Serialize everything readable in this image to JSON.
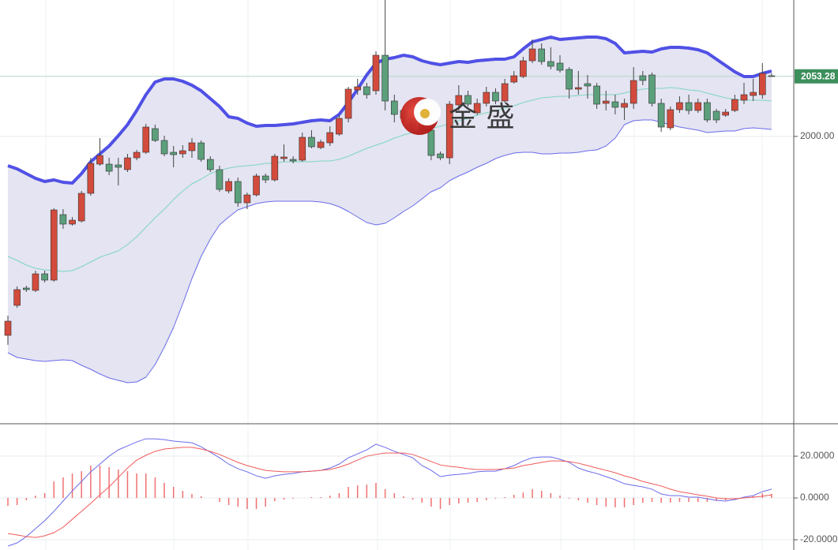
{
  "chart_data": [
    {
      "type": "candlestick",
      "up_color": "#d24b3c",
      "down_color": "#5b9f7b",
      "band_fill": "#e4e4f2",
      "grid": true,
      "ylim": [
        1745.1,
        2121
      ],
      "yticks": [
        {
          "value": 2000,
          "label": "2000.00"
        }
      ],
      "last_price": {
        "value": 2053.28,
        "label": "2053.28",
        "color": "#3d8f5c"
      },
      "ohlc": [
        [
          1823.5,
          1841,
          1815.1,
          1836.1
        ],
        [
          1850.1,
          1866.9,
          1848,
          1864.1
        ],
        [
          1865.5,
          1867.6,
          1862,
          1864.1
        ],
        [
          1863.4,
          1880.9,
          1862,
          1878.1
        ],
        [
          1878.1,
          1880.9,
          1870.4,
          1872.5
        ],
        [
          1872.5,
          1936.2,
          1871.1,
          1934.8
        ],
        [
          1930.6,
          1935.5,
          1918,
          1922.2
        ],
        [
          1922.2,
          1928.5,
          1920.8,
          1925.7
        ],
        [
          1925,
          1951.6,
          1923.6,
          1949.5
        ],
        [
          1949.5,
          1981,
          1947.4,
          1976.1
        ],
        [
          1975.4,
          1998.5,
          1974,
          1983.1
        ],
        [
          1975.4,
          1981,
          1965.6,
          1969.1
        ],
        [
          1974.7,
          1981,
          1956.5,
          1972.6
        ],
        [
          1970.5,
          1984.5,
          1968.4,
          1981
        ],
        [
          1981,
          1988,
          1978.9,
          1985.9
        ],
        [
          1985.9,
          2011.1,
          1984.5,
          2008.3
        ],
        [
          2006.9,
          2010.4,
          1995,
          1996.4
        ],
        [
          1996.4,
          2000.6,
          1982.4,
          1984.5
        ],
        [
          1985.9,
          1991.5,
          1972.6,
          1983.8
        ],
        [
          1984.5,
          1992.2,
          1981,
          1987.3
        ],
        [
          1987.3,
          1998.5,
          1981,
          1994.3
        ],
        [
          1994.3,
          1996.4,
          1977.5,
          1979.6
        ],
        [
          1979.6,
          1982.4,
          1968.4,
          1970.5
        ],
        [
          1970.5,
          1974,
          1950.9,
          1953
        ],
        [
          1951.6,
          1962.8,
          1949.5,
          1960
        ],
        [
          1960,
          1963.5,
          1937.6,
          1941.1
        ],
        [
          1941.1,
          1950.2,
          1935.5,
          1948.1
        ],
        [
          1948.1,
          1967,
          1946.7,
          1964.9
        ],
        [
          1964.9,
          1967,
          1958.6,
          1961.4
        ],
        [
          1961.4,
          1984.5,
          1960,
          1982.4
        ],
        [
          1980.3,
          1992.9,
          1977.5,
          1981.7
        ],
        [
          1979.6,
          1982.4,
          1976.1,
          1978.2
        ],
        [
          1978.9,
          2003.4,
          1977.5,
          1999.2
        ],
        [
          1999.2,
          2005.5,
          1989.4,
          1990.8
        ],
        [
          1990.1,
          1997.1,
          1988.7,
          1995
        ],
        [
          1994.3,
          2009,
          1991.5,
          2003.4
        ],
        [
          2002,
          2018.8,
          2000.6,
          2016
        ],
        [
          2016,
          2044,
          2012.5,
          2041.9
        ],
        [
          2041.2,
          2051,
          2037,
          2044
        ],
        [
          2044,
          2047.5,
          2033.5,
          2037
        ],
        [
          2040.5,
          2075.5,
          2037,
          2072
        ],
        [
          2072,
          2121,
          2023,
          2031.4
        ],
        [
          2031.4,
          2037,
          2012.5,
          2019.5
        ],
        [
          2023,
          2026.5,
          2010.4,
          2016
        ],
        [
          2016,
          2023,
          2005.5,
          2009
        ],
        [
          2012.5,
          2017.4,
          2002,
          2005.5
        ],
        [
          2005.5,
          2009,
          1978.9,
          1983.1
        ],
        [
          1984.5,
          1986.6,
          1978.9,
          1981
        ],
        [
          1981,
          2031.4,
          1975.4,
          2028.6
        ],
        [
          2027.9,
          2045.4,
          2023,
          2036.3
        ],
        [
          2036.3,
          2040.5,
          2026.5,
          2028.6
        ],
        [
          2020.9,
          2033.5,
          2018.8,
          2029.3
        ],
        [
          2029.3,
          2044,
          2026.5,
          2039.1
        ],
        [
          2039.1,
          2042.6,
          2028.6,
          2031.4
        ],
        [
          2031.4,
          2051,
          2030,
          2046.8
        ],
        [
          2048.2,
          2058,
          2046.8,
          2053.8
        ],
        [
          2053.1,
          2070.6,
          2051.7,
          2067.1
        ],
        [
          2067.1,
          2086,
          2065,
          2077.6
        ],
        [
          2077.6,
          2082.5,
          2063.6,
          2066.4
        ],
        [
          2066.4,
          2079,
          2059.4,
          2062.2
        ],
        [
          2065,
          2072,
          2056.6,
          2058.7
        ],
        [
          2059.4,
          2061.5,
          2033.5,
          2041.9
        ],
        [
          2041.9,
          2058,
          2037,
          2043.3
        ],
        [
          2046.8,
          2054.5,
          2033.5,
          2044.7
        ],
        [
          2044.7,
          2047.5,
          2024.4,
          2028.6
        ],
        [
          2029.3,
          2040.5,
          2023,
          2031.4
        ],
        [
          2030.7,
          2037,
          2019.5,
          2025.8
        ],
        [
          2025.8,
          2033.5,
          2014.6,
          2029.3
        ],
        [
          2029.3,
          2061.5,
          2024.4,
          2049.6
        ],
        [
          2053.8,
          2058,
          2045.4,
          2049.6
        ],
        [
          2054.5,
          2056.6,
          2026.5,
          2029.3
        ],
        [
          2029.3,
          2033.5,
          2004.1,
          2008.3
        ],
        [
          2007.6,
          2026.5,
          2005.5,
          2023.7
        ],
        [
          2023.7,
          2035.6,
          2020.9,
          2030
        ],
        [
          2030,
          2037,
          2019.5,
          2023
        ],
        [
          2023,
          2033.5,
          2020.9,
          2030
        ],
        [
          2030,
          2033.5,
          2012.5,
          2014.6
        ],
        [
          2022.3,
          2024.4,
          2011.8,
          2014.6
        ],
        [
          2018.8,
          2024.4,
          2017.4,
          2021.6
        ],
        [
          2023,
          2037,
          2021.6,
          2032.8
        ],
        [
          2032.1,
          2047.5,
          2028.6,
          2037
        ],
        [
          2036.3,
          2051,
          2031.4,
          2039.1
        ],
        [
          2037,
          2065,
          2033.5,
          2055.9
        ],
        [
          2053.8,
          2055.9,
          2053.1,
          2053.3
        ]
      ],
      "series": [
        {
          "color": "#5050e6",
          "width": 4,
          "values": [
            1974,
            1971.2,
            1967,
            1962.8,
            1960,
            1961.4,
            1959.3,
            1958.6,
            1967,
            1977.5,
            1984.5,
            1991.5,
            2000.6,
            2010.4,
            2023,
            2037,
            2048.2,
            2051,
            2051,
            2048.9,
            2045.4,
            2040.5,
            2033.5,
            2026.5,
            2017.4,
            2016,
            2011.8,
            2009,
            2009.7,
            2009.7,
            2010.4,
            2011.1,
            2012.5,
            2013.9,
            2014.6,
            2013.9,
            2019.5,
            2030,
            2041.9,
            2054.5,
            2065,
            2068.5,
            2069.9,
            2072,
            2070.6,
            2067.1,
            2065,
            2063.6,
            2065,
            2066.4,
            2065.7,
            2067.1,
            2067.8,
            2068.5,
            2068.5,
            2070.6,
            2077.6,
            2083.9,
            2086,
            2088.1,
            2086,
            2086.7,
            2087.4,
            2088.1,
            2088.1,
            2086.7,
            2082.5,
            2074.1,
            2074.8,
            2075.5,
            2074.8,
            2077.6,
            2079,
            2079,
            2078.3,
            2076.9,
            2074.1,
            2068.5,
            2062.9,
            2057.3,
            2053.1,
            2053.1,
            2055.9,
            2058
          ]
        },
        {
          "color": "#7ed6bf",
          "width": 1,
          "values": [
            1893.5,
            1890,
            1885.8,
            1883,
            1881.6,
            1880.9,
            1880.2,
            1880.9,
            1884.4,
            1888.6,
            1892.8,
            1895.6,
            1898.4,
            1904,
            1911,
            1919.4,
            1927.8,
            1935.5,
            1943.9,
            1951.6,
            1957.9,
            1962.1,
            1967,
            1969.8,
            1971.9,
            1973.3,
            1974,
            1974.7,
            1976.1,
            1976.1,
            1977.5,
            1977.5,
            1977.5,
            1977.5,
            1978.2,
            1978.2,
            1979.6,
            1982.4,
            1985.9,
            1989.4,
            1992.2,
            1995,
            1998.5,
            2001.3,
            2003.4,
            2005.5,
            2006.9,
            2009,
            2011.1,
            2013.9,
            2016,
            2018.8,
            2020.9,
            2023,
            2025.1,
            2027.2,
            2030,
            2032.1,
            2034.2,
            2034.9,
            2035.6,
            2035.6,
            2036.3,
            2037,
            2037,
            2037,
            2037,
            2038.4,
            2040.5,
            2041.9,
            2042.6,
            2042.6,
            2043.3,
            2042.6,
            2041.2,
            2040.5,
            2038.4,
            2036.3,
            2034.2,
            2032.8,
            2032.1,
            2032.1,
            2032.1,
            2031.4
          ]
        },
        {
          "color": "#6b6bea",
          "width": 1,
          "values": [
            1808.1,
            1803.9,
            1802.5,
            1801.1,
            1800.4,
            1801.1,
            1801.8,
            1801.1,
            1796.9,
            1793.4,
            1789.2,
            1785.7,
            1783.6,
            1781.5,
            1782.2,
            1786.4,
            1797.6,
            1813,
            1830.5,
            1851.5,
            1873.9,
            1893.5,
            1908.9,
            1921.5,
            1928.5,
            1934.8,
            1937.6,
            1940.4,
            1941.8,
            1942.5,
            1942.5,
            1942.5,
            1942.5,
            1942.5,
            1941.8,
            1940.4,
            1937.6,
            1933.4,
            1928.5,
            1923.6,
            1921.5,
            1922.9,
            1927.8,
            1933.4,
            1938.3,
            1944.6,
            1950.9,
            1954.4,
            1960.7,
            1964.9,
            1968.4,
            1972.6,
            1976.1,
            1980.3,
            1983.1,
            1985.2,
            1985.9,
            1985.9,
            1984.5,
            1984.5,
            1985.2,
            1985.2,
            1985.9,
            1987.3,
            1988,
            1991.5,
            1998.5,
            2010.4,
            2013.9,
            2014.6,
            2014.6,
            2012.5,
            2010.4,
            2008.3,
            2006.9,
            2005.5,
            2003.4,
            2004.1,
            2004.8,
            2004.8,
            2006.9,
            2007.6,
            2006.9,
            2006.2
          ]
        }
      ]
    },
    {
      "type": "macd",
      "grid": true,
      "ylim": [
        -24.9,
        35.5
      ],
      "yticks": [
        {
          "value": 20,
          "label": "20.0000"
        },
        {
          "value": 0,
          "label": "0.0000"
        },
        {
          "value": -20,
          "label": "-20.0000"
        }
      ],
      "series": [
        {
          "color": "#6b6bea",
          "values": [
            -23.0,
            -21.5,
            -18.5,
            -14.7,
            -10.9,
            -6.4,
            -1.5,
            3.4,
            7.9,
            12.5,
            16.2,
            20.0,
            23.0,
            24.9,
            26.8,
            28.3,
            28.3,
            27.9,
            27.2,
            26.8,
            26.4,
            24.5,
            21.9,
            19.2,
            16.2,
            14.0,
            12.5,
            10.6,
            9.4,
            10.6,
            11.3,
            11.7,
            12.5,
            12.8,
            13.2,
            14.3,
            16.2,
            19.2,
            21.1,
            23.0,
            25.7,
            24.2,
            22.3,
            20.8,
            19.2,
            15.5,
            13.2,
            10.2,
            10.9,
            11.3,
            11.7,
            12.5,
            12.8,
            12.8,
            14.0,
            15.5,
            17.7,
            19.2,
            19.6,
            19.6,
            18.5,
            17.0,
            14.3,
            12.8,
            11.7,
            10.2,
            8.7,
            6.8,
            6.0,
            5.3,
            4.2,
            1.9,
            1.1,
            1.1,
            0.4,
            0.4,
            -0.4,
            -1.1,
            -1.5,
            -0.8,
            0.4,
            1.1,
            3.0,
            4.2
          ]
        },
        {
          "color": "#f05a5a",
          "values": [
            -17.0,
            -17.7,
            -18.5,
            -18.9,
            -18.1,
            -16.6,
            -14.0,
            -10.2,
            -6.4,
            -2.6,
            1.5,
            5.3,
            9.8,
            14.3,
            18.1,
            20.4,
            22.3,
            23.4,
            23.8,
            24.2,
            24.2,
            23.4,
            22.3,
            20.8,
            18.9,
            17.0,
            15.5,
            14.3,
            13.2,
            12.8,
            12.5,
            12.5,
            12.5,
            12.8,
            13.2,
            13.6,
            14.7,
            16.2,
            18.1,
            20.0,
            20.8,
            21.5,
            21.5,
            21.5,
            20.8,
            19.2,
            17.4,
            15.8,
            15.1,
            14.7,
            14.0,
            13.6,
            13.6,
            13.6,
            14.0,
            14.3,
            15.5,
            16.2,
            17.0,
            17.7,
            17.7,
            17.4,
            16.6,
            15.5,
            14.3,
            13.2,
            12.1,
            10.6,
            9.4,
            7.9,
            6.8,
            5.7,
            4.2,
            3.0,
            2.3,
            1.5,
            0.8,
            0,
            -0.4,
            -0.4,
            0,
            0.4,
            0.8,
            1.5
          ]
        }
      ],
      "histogram": {
        "color": "#f07070",
        "values": [
          -3.8,
          -3.4,
          -1.1,
          1.1,
          2.3,
          7.9,
          9.8,
          11.7,
          12.8,
          15.5,
          15.5,
          14.7,
          13.6,
          12.8,
          11.7,
          11.7,
          9.8,
          7.2,
          5.3,
          3.4,
          1.9,
          0.8,
          0,
          -1.9,
          -3.4,
          -4.2,
          -5.3,
          -5.3,
          -4.2,
          -1.5,
          -0.8,
          -0.4,
          0,
          0.4,
          0.4,
          1.1,
          2.3,
          5.3,
          6.0,
          6.4,
          7.2,
          4.2,
          2.3,
          0.8,
          -0.8,
          -2.3,
          -4.2,
          -5.3,
          -3.4,
          -2.6,
          -2.3,
          -1.9,
          -1.1,
          -0.4,
          0.4,
          1.5,
          2.6,
          4.2,
          3.4,
          2.3,
          1.1,
          -0.4,
          -1.1,
          -2.3,
          -3.4,
          -4.2,
          -4.5,
          -4.5,
          -3.4,
          -2.3,
          -1.9,
          -2.3,
          -2.3,
          -1.9,
          -1.9,
          -1.9,
          -1.9,
          -1.5,
          -1.1,
          -0.4,
          0.4,
          0.8,
          2.3,
          1.9
        ]
      }
    }
  ],
  "watermark": {
    "text": "金 盛"
  }
}
